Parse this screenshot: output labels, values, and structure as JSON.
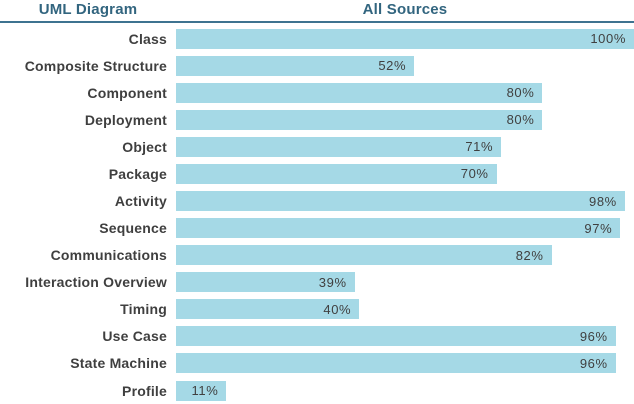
{
  "header": {
    "left_title": "UML Diagram",
    "right_title": "All Sources"
  },
  "colors": {
    "bar_fill": "#A5D9E6",
    "header_text": "#32657F",
    "divider": "#3E7390",
    "category_label_text": "#3F3F3F",
    "value_label_text": "#404040",
    "background": "#FFFFFF"
  },
  "chart_data": {
    "type": "bar",
    "orientation": "horizontal",
    "title": "All Sources",
    "category_axis_title": "UML Diagram",
    "categories": [
      "Class",
      "Composite Structure",
      "Component",
      "Deployment",
      "Object",
      "Package",
      "Activity",
      "Sequence",
      "Communications",
      "Interaction Overview",
      "Timing",
      "Use Case",
      "State Machine",
      "Profile"
    ],
    "values": [
      100,
      52,
      80,
      80,
      71,
      70,
      98,
      97,
      82,
      39,
      40,
      96,
      96,
      11
    ],
    "value_labels": [
      "100%",
      "52%",
      "80%",
      "80%",
      "71%",
      "70%",
      "98%",
      "97%",
      "82%",
      "39%",
      "40%",
      "96%",
      "96%",
      "11%"
    ],
    "xlim": [
      0,
      100
    ],
    "grid": false,
    "legend": false,
    "axis_ticks": false,
    "data_labels": "inside-end"
  }
}
